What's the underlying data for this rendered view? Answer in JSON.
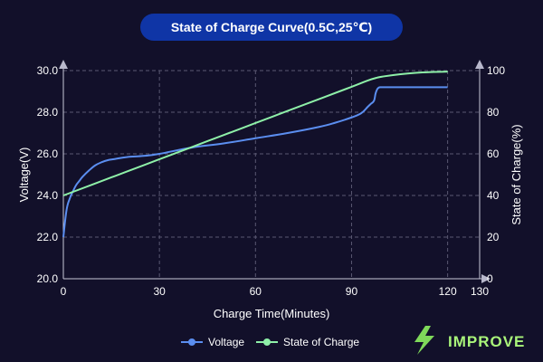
{
  "chart_data": {
    "type": "line",
    "title": "State of Charge Curve(0.5C,25℃)",
    "xlabel": "Charge Time(Minutes)",
    "ylabel_left": "Voltage(V)",
    "ylabel_right": "State of Charge(%)",
    "xlim": [
      0,
      130
    ],
    "x_ticks": [
      "0",
      "30",
      "60",
      "90",
      "120",
      "130"
    ],
    "x_tick_values": [
      0,
      30,
      60,
      90,
      120,
      130
    ],
    "ylim_left": [
      20,
      30
    ],
    "y_left_ticks": [
      "20.0",
      "22.0",
      "24.0",
      "26.0",
      "28.0",
      "30.0"
    ],
    "y_left_tick_values": [
      20,
      22,
      24,
      26,
      28,
      30
    ],
    "ylim_right": [
      0,
      100
    ],
    "y_right_ticks": [
      "0",
      "20",
      "40",
      "60",
      "80",
      "100"
    ],
    "y_right_tick_values": [
      0,
      20,
      40,
      60,
      80,
      100
    ],
    "grid": true,
    "legend_position": "bottom-center",
    "series": [
      {
        "name": "Voltage",
        "axis": "left",
        "color": "#5b8ef0",
        "x": [
          0,
          1,
          2,
          3,
          4,
          5,
          6,
          8,
          10,
          12,
          14,
          16,
          20,
          25,
          30,
          40,
          50,
          60,
          70,
          80,
          85,
          90,
          93,
          95,
          96,
          97,
          97.5,
          98,
          98.5,
          99,
          100,
          105,
          110,
          115,
          120
        ],
        "y": [
          22.0,
          23.3,
          23.85,
          24.2,
          24.5,
          24.7,
          24.9,
          25.2,
          25.45,
          25.6,
          25.7,
          25.75,
          25.85,
          25.9,
          26.0,
          26.3,
          26.5,
          26.75,
          27.0,
          27.3,
          27.5,
          27.75,
          27.95,
          28.25,
          28.4,
          28.55,
          28.9,
          29.1,
          29.18,
          29.2,
          29.2,
          29.2,
          29.2,
          29.2,
          29.2
        ]
      },
      {
        "name": "State of Charge",
        "axis": "right",
        "color": "#8ef0a8",
        "x": [
          0,
          10,
          20,
          30,
          40,
          50,
          60,
          70,
          80,
          90,
          95,
          98,
          100,
          105,
          110,
          115,
          120
        ],
        "y": [
          40,
          45.8,
          51.6,
          57.4,
          63.2,
          69,
          74.8,
          80.6,
          86.4,
          92.2,
          95.2,
          96.6,
          97.2,
          98.2,
          98.9,
          99.3,
          99.5
        ]
      }
    ]
  },
  "colors": {
    "background": "#12102a",
    "title_pill": "#0f35a6",
    "grid": "#5a5872",
    "axis": "#c8c8d8",
    "voltage": "#5b8ef0",
    "soc": "#8ef0a8",
    "logo": "#a9f47a"
  },
  "logo": {
    "text": "IMPROVE",
    "icon": "lightning-bolt-icon"
  }
}
